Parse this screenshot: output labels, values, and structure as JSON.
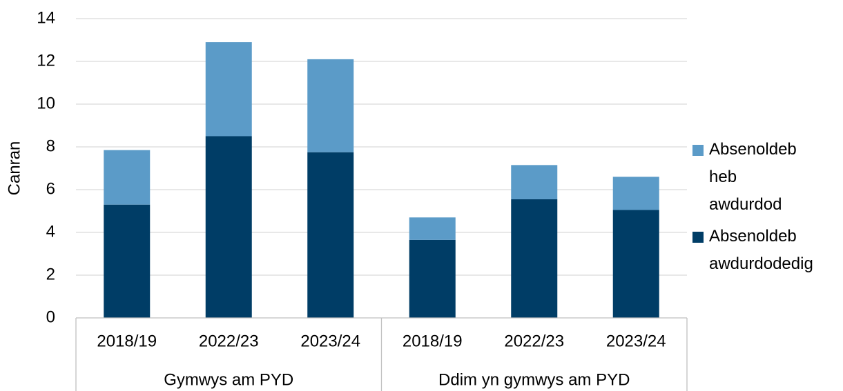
{
  "chart_data": {
    "type": "stacked_bar",
    "ylabel": "Canran",
    "categories": [
      "2018/19",
      "2022/23",
      "2023/24",
      "2018/19",
      "2022/23",
      "2023/24"
    ],
    "groups": [
      "Gymwys am PYD",
      "Ddim yn gymwys am PYD"
    ],
    "series": [
      {
        "name": "Absenoldeb awdurdodedig",
        "color": "#003d66",
        "values": [
          5.3,
          8.5,
          7.75,
          3.65,
          5.55,
          5.05
        ]
      },
      {
        "name": "Absenoldeb heb awdurdod",
        "color": "#5b9bc8",
        "values": [
          2.55,
          4.4,
          4.35,
          1.05,
          1.6,
          1.55
        ]
      }
    ],
    "ylim": [
      0,
      14
    ],
    "yticks": [
      0,
      2,
      4,
      6,
      8,
      10,
      12,
      14
    ],
    "grid": true
  }
}
